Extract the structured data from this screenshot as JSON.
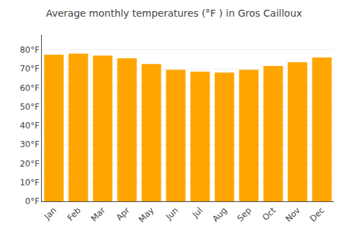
{
  "chart_data": {
    "type": "bar",
    "title": "Average monthly temperatures (°F ) in Gros Cailloux",
    "categories": [
      "Jan",
      "Feb",
      "Mar",
      "Apr",
      "May",
      "Jun",
      "Jul",
      "Aug",
      "Sep",
      "Oct",
      "Nov",
      "Dec"
    ],
    "values": [
      77.5,
      78.0,
      77.0,
      75.5,
      72.5,
      69.5,
      68.5,
      68.0,
      69.5,
      71.5,
      73.5,
      76.0
    ],
    "color": "#FFA500",
    "ylim": [
      0,
      88
    ],
    "yticks": [
      {
        "value": 0,
        "label": "0°F"
      },
      {
        "value": 10,
        "label": "10°F"
      },
      {
        "value": 20,
        "label": "20°F"
      },
      {
        "value": 30,
        "label": "30°F"
      },
      {
        "value": 40,
        "label": "40°F"
      },
      {
        "value": 50,
        "label": "50°F"
      },
      {
        "value": 60,
        "label": "60°F"
      },
      {
        "value": 70,
        "label": "70°F"
      },
      {
        "value": 80,
        "label": "80°F"
      }
    ],
    "grid": true
  }
}
